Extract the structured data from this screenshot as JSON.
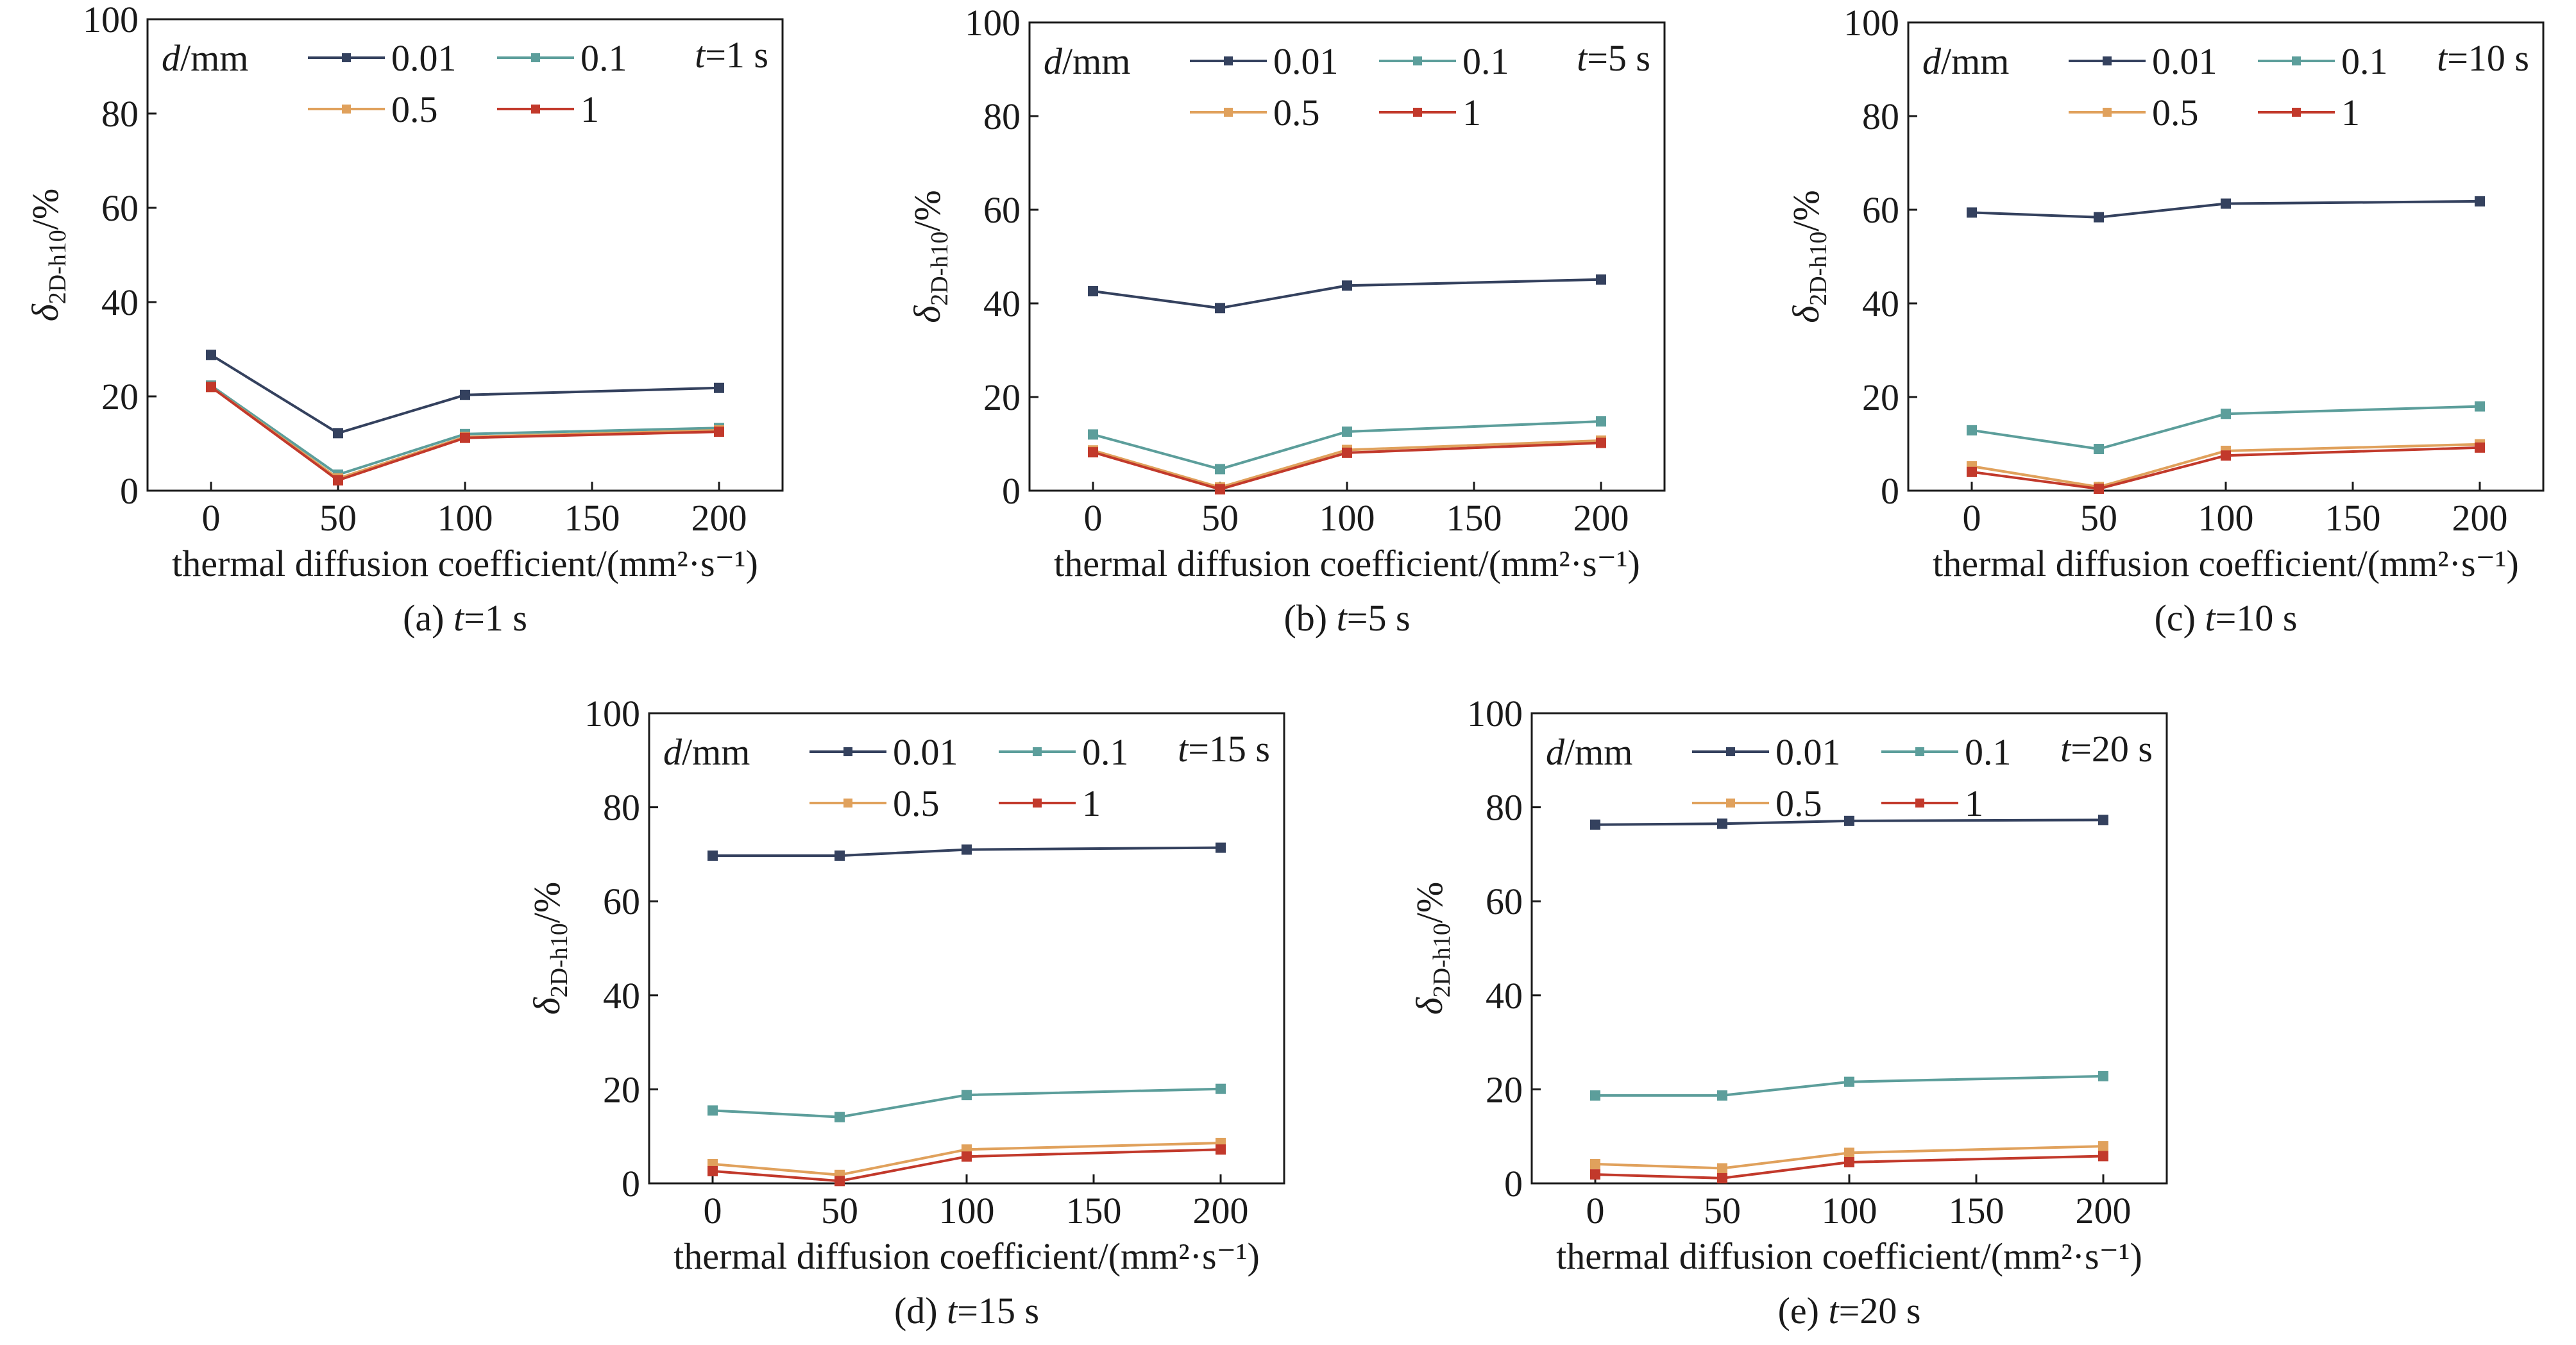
{
  "common": {
    "ylabel": "δ",
    "ylabel_sub": "2D-h10",
    "ylabel_unit": "/%",
    "xlabel": "thermal diffusion coefficient/(mm²·s⁻¹)",
    "legend_title_var": "d",
    "legend_title_unit": "/mm",
    "x_ticks": [
      0,
      50,
      100,
      150,
      200
    ],
    "y_ticks": [
      0,
      20,
      40,
      60,
      80,
      100
    ],
    "xlim": [
      -25,
      225
    ],
    "ylim": [
      0,
      100
    ],
    "series_names": [
      "0.01",
      "0.1",
      "0.5",
      "1"
    ],
    "series_colors": [
      "#34415e",
      "#5c9e9b",
      "#e0a15c",
      "#c2392b"
    ]
  },
  "chart_data": [
    {
      "type": "line",
      "caption_prefix": "(a) ",
      "t_var": "t",
      "t_value": "=1 s",
      "x": [
        0,
        50,
        100,
        200
      ],
      "series": [
        {
          "name": "0.01",
          "values": [
            28.8,
            12.2,
            20.3,
            21.8
          ]
        },
        {
          "name": "0.1",
          "values": [
            22.3,
            3.4,
            12.0,
            13.3
          ]
        },
        {
          "name": "0.5",
          "values": [
            22.0,
            2.6,
            11.4,
            12.8
          ]
        },
        {
          "name": "1",
          "values": [
            22.0,
            2.2,
            11.2,
            12.5
          ]
        }
      ]
    },
    {
      "type": "line",
      "caption_prefix": "(b) ",
      "t_var": "t",
      "t_value": "=5 s",
      "x": [
        0,
        50,
        100,
        200
      ],
      "series": [
        {
          "name": "0.01",
          "values": [
            42.6,
            39.0,
            43.8,
            45.1
          ]
        },
        {
          "name": "0.1",
          "values": [
            12.0,
            4.6,
            12.6,
            14.8
          ]
        },
        {
          "name": "0.5",
          "values": [
            8.6,
            0.7,
            8.7,
            10.7
          ]
        },
        {
          "name": "1",
          "values": [
            8.2,
            0.3,
            8.1,
            10.2
          ]
        }
      ]
    },
    {
      "type": "line",
      "caption_prefix": "(c) ",
      "t_var": "t",
      "t_value": "=10 s",
      "x": [
        0,
        50,
        100,
        200
      ],
      "series": [
        {
          "name": "0.01",
          "values": [
            59.4,
            58.4,
            61.3,
            61.8
          ]
        },
        {
          "name": "0.1",
          "values": [
            12.9,
            8.9,
            16.4,
            18.0
          ]
        },
        {
          "name": "0.5",
          "values": [
            5.2,
            0.8,
            8.5,
            9.9
          ]
        },
        {
          "name": "1",
          "values": [
            4.0,
            0.4,
            7.5,
            9.2
          ]
        }
      ]
    },
    {
      "type": "line",
      "caption_prefix": "(d) ",
      "t_var": "t",
      "t_value": "=15 s",
      "x": [
        0,
        50,
        100,
        200
      ],
      "series": [
        {
          "name": "0.01",
          "values": [
            69.7,
            69.7,
            71.0,
            71.4
          ]
        },
        {
          "name": "0.1",
          "values": [
            15.5,
            14.1,
            18.8,
            20.1
          ]
        },
        {
          "name": "0.5",
          "values": [
            4.1,
            1.8,
            7.2,
            8.6
          ]
        },
        {
          "name": "1",
          "values": [
            2.6,
            0.5,
            5.7,
            7.2
          ]
        }
      ]
    },
    {
      "type": "line",
      "caption_prefix": "(e) ",
      "t_var": "t",
      "t_value": "=20 s",
      "x": [
        0,
        50,
        100,
        200
      ],
      "series": [
        {
          "name": "0.01",
          "values": [
            76.3,
            76.5,
            77.1,
            77.3
          ]
        },
        {
          "name": "0.1",
          "values": [
            18.7,
            18.7,
            21.6,
            22.8
          ]
        },
        {
          "name": "0.5",
          "values": [
            4.1,
            3.2,
            6.5,
            7.9
          ]
        },
        {
          "name": "1",
          "values": [
            1.9,
            1.1,
            4.5,
            5.8
          ]
        }
      ]
    }
  ]
}
